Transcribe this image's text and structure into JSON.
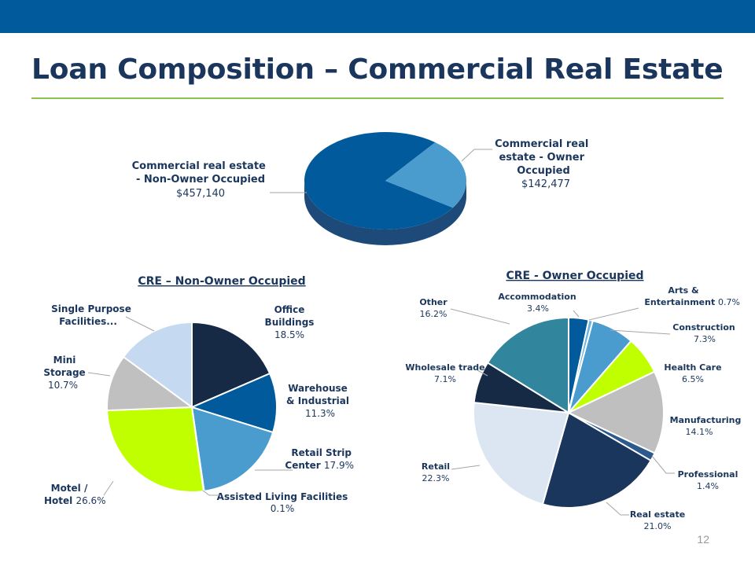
{
  "header": {
    "title": "Loan Composition – Commercial Real Estate"
  },
  "page_number": "12",
  "colors": {
    "header_bar": "#005a9c",
    "title": "#1b365d",
    "rule": "#8cc152"
  },
  "chart_data": [
    {
      "type": "pie",
      "style": "3d",
      "categories": [
        "Commercial real estate - Non-Owner Occupied",
        "Commercial real estate - Owner Occupied"
      ],
      "values": [
        457140,
        142477
      ],
      "value_labels": [
        "$457,140",
        "$142,477"
      ],
      "colors": [
        "#005a9c",
        "#4a9ccf"
      ]
    },
    {
      "type": "pie",
      "title": "CRE – Non-Owner Occupied",
      "categories": [
        "Office Buildings",
        "Warehouse & Industrial",
        "Retail Strip Center",
        "Assisted Living Facilities",
        "Motel / Hotel",
        "Mini Storage",
        "Single Purpose Facilities..."
      ],
      "values": [
        18.5,
        11.3,
        17.9,
        0.1,
        26.6,
        10.7,
        14.9
      ],
      "value_labels": [
        "18.5%",
        "11.3%",
        "17.9%",
        "0.1%",
        "26.6%",
        "10.7%",
        ""
      ],
      "colors": [
        "#172a45",
        "#005a9c",
        "#4a9ccf",
        "#9fb3c8",
        "#c0ff00",
        "#c0c0c0",
        "#c5d9f1"
      ]
    },
    {
      "type": "pie",
      "title": "CRE - Owner Occupied",
      "categories": [
        "Accommodation",
        "Arts & Entertainment",
        "Construction",
        "Health Care",
        "Manufacturing",
        "Professional",
        "Real estate",
        "Retail",
        "Wholesale trade",
        "Other"
      ],
      "values": [
        3.4,
        0.7,
        7.3,
        6.5,
        14.1,
        1.4,
        21.0,
        22.3,
        7.1,
        16.2
      ],
      "value_labels": [
        "3.4%",
        "0.7%",
        "7.3%",
        "6.5%",
        "14.1%",
        "1.4%",
        "21.0%",
        "22.3%",
        "7.1%",
        "16.2%"
      ],
      "colors": [
        "#005a9c",
        "#6bb3e0",
        "#4a9ccf",
        "#c0ff00",
        "#bfbfbf",
        "#2d5a8c",
        "#1b365d",
        "#dce6f2",
        "#172a45",
        "#31859c"
      ]
    }
  ]
}
